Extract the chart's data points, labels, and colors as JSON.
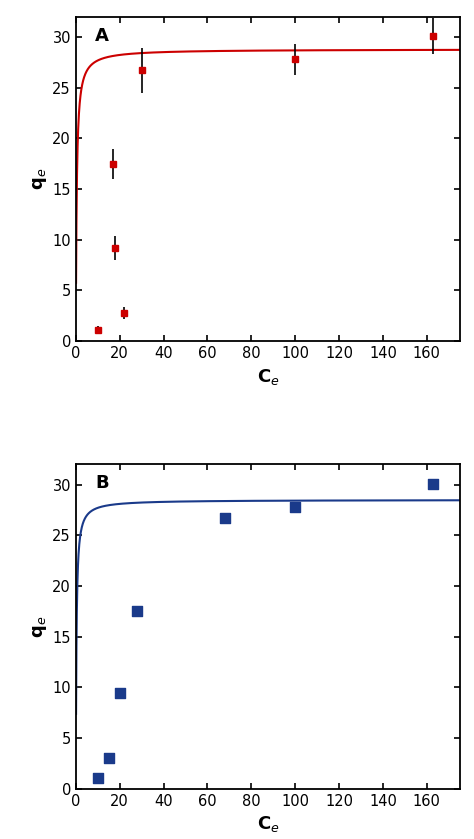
{
  "panel_A": {
    "label": "A",
    "scatter_x": [
      10,
      17,
      18,
      22,
      30,
      100,
      163
    ],
    "scatter_y": [
      1.1,
      17.5,
      9.2,
      2.8,
      26.7,
      27.8,
      30.1
    ],
    "yerr": [
      0.4,
      1.5,
      1.2,
      0.6,
      2.2,
      1.5,
      1.8
    ],
    "color": "#cc0000",
    "marker": "s",
    "markersize": 5,
    "line_color": "#cc0000",
    "qmax": 28.8,
    "KL": 2.5,
    "xlabel": "C$_e$",
    "ylabel": "q$_e$",
    "xlim": [
      0,
      175
    ],
    "ylim": [
      0,
      32
    ],
    "xticks": [
      0,
      20,
      40,
      60,
      80,
      100,
      120,
      140,
      160
    ],
    "yticks": [
      0,
      5,
      10,
      15,
      20,
      25,
      30
    ]
  },
  "panel_B": {
    "label": "B",
    "scatter_x": [
      10,
      15,
      20,
      28,
      68,
      100,
      163
    ],
    "scatter_y": [
      1.1,
      3.0,
      9.4,
      17.5,
      26.7,
      27.8,
      30.1
    ],
    "color": "#1a3a8a",
    "marker": "s",
    "markersize": 5,
    "line_color": "#1a3a8a",
    "qmax": 28.5,
    "KL": 3.5,
    "xlabel": "C$_e$",
    "ylabel": "q$_e$",
    "xlim": [
      0,
      175
    ],
    "ylim": [
      0,
      32
    ],
    "xticks": [
      0,
      20,
      40,
      60,
      80,
      100,
      120,
      140,
      160
    ],
    "yticks": [
      0,
      5,
      10,
      15,
      20,
      25,
      30
    ]
  },
  "figure_bg": "#ffffff",
  "axes_bg": "#ffffff"
}
